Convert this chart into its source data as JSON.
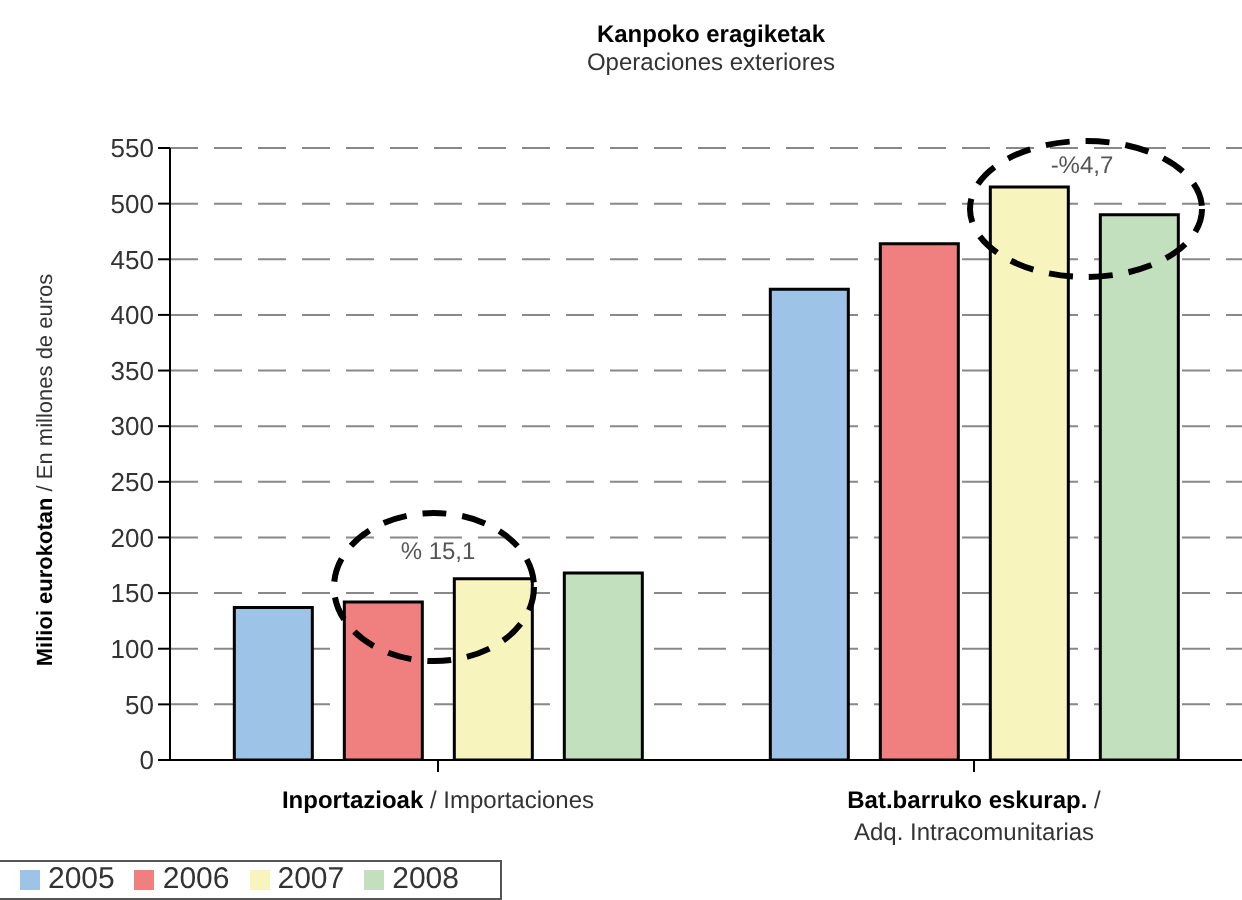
{
  "chart_data": {
    "type": "bar",
    "title": "Kanpoko eragiketak",
    "subtitle": "Operaciones exteriores",
    "ylabel": "Milioi eurokotan / En millones de euros",
    "categories": [
      "Inportazioak / Importaciones",
      "Bat.barruko eskurap. / Adq. Intracomunitarias"
    ],
    "series": [
      {
        "name": "2005",
        "color": "#9dc3e6",
        "values": [
          137,
          423
        ]
      },
      {
        "name": "2006",
        "color": "#f08080",
        "values": [
          142,
          464
        ]
      },
      {
        "name": "2007",
        "color": "#f7f5bd",
        "values": [
          163,
          515
        ]
      },
      {
        "name": "2008",
        "color": "#c3e0be",
        "values": [
          168,
          490
        ]
      }
    ],
    "ylim": [
      0,
      550
    ],
    "yticks": [
      0,
      50,
      100,
      150,
      200,
      250,
      300,
      350,
      400,
      450,
      500,
      550
    ],
    "grid": "y",
    "legend": "bottom left",
    "annotations": [
      "% 15,1",
      "-%4,7"
    ]
  }
}
